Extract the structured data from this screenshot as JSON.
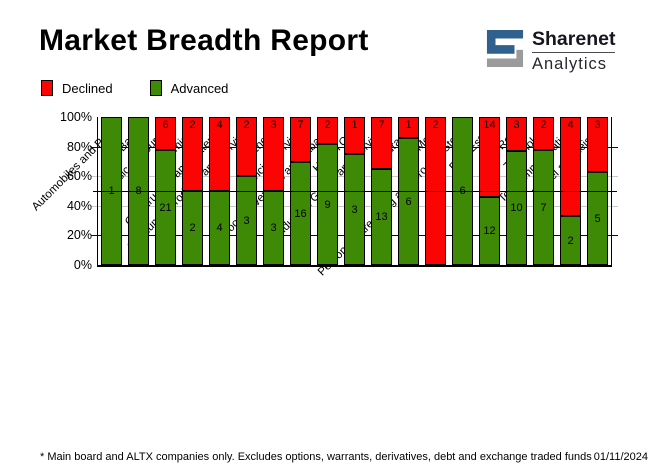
{
  "header": {
    "title": "Market Breadth Report",
    "logo": {
      "brand": "Sharenet",
      "sub": "Analytics",
      "blue": "#30618e",
      "gray": "#9b9b9b"
    }
  },
  "legend": [
    {
      "label": "Declined",
      "color": "#fa0404"
    },
    {
      "label": "Advanced",
      "color": "#3e8a06"
    }
  ],
  "chart_data": {
    "type": "bar",
    "stacked": true,
    "note": "bars show percentage split of advancing vs declining companies; numbers on segments are company counts",
    "categories": [
      "Automobiles and Parts",
      "Banks",
      "Basic Resources",
      "Chemicals",
      "Construction and Materials",
      "Consumer Products and Services",
      "Energy",
      "Financial Services",
      "Food,Beverages and Tabacco",
      "Health Care",
      "Industrial Goods and Services",
      "Insurance",
      "Media",
      "Personal Care, Drug and Grocery Stores",
      "Real Estate",
      "Retail",
      "Technology",
      "Telecommunications",
      "Travel and Leisure"
    ],
    "series": [
      {
        "name": "Declined",
        "color": "#fa0404",
        "values": [
          0,
          0,
          6,
          2,
          4,
          2,
          3,
          7,
          2,
          1,
          7,
          1,
          2,
          0,
          14,
          3,
          2,
          4,
          3
        ]
      },
      {
        "name": "Advanced",
        "color": "#3e8a06",
        "values": [
          1,
          8,
          21,
          2,
          4,
          3,
          3,
          16,
          9,
          3,
          13,
          6,
          0,
          6,
          12,
          10,
          7,
          2,
          5
        ]
      }
    ],
    "y_axis": {
      "ticks": [
        "0%",
        "20%",
        "40%",
        "60%",
        "80%",
        "100%"
      ],
      "range": [
        0,
        100
      ]
    },
    "gridlines": {
      "navy_levels": [
        20,
        80
      ],
      "gray_levels": [
        40,
        60
      ],
      "half_line_level": 50,
      "navy_color": "#000080",
      "gray_color": "#c9c9c9"
    },
    "legend_position": "top-left"
  },
  "footer": {
    "note": "* Main board and ALTX companies only. Excludes options, warrants, derivatives, debt and exchange traded funds",
    "date": "01/11/2024"
  }
}
